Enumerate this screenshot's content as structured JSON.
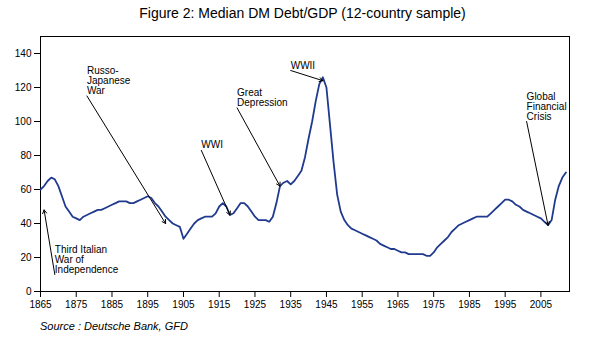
{
  "chart_data": {
    "type": "line",
    "title": "Figure 2: Median DM Debt/GDP (12-country sample)",
    "source": "Source : Deutsche Bank, GFD",
    "color": "#1F3A8F",
    "xlim": [
      1865,
      2013
    ],
    "ylim": [
      0,
      150
    ],
    "xticks": [
      1865,
      1875,
      1885,
      1895,
      1905,
      1915,
      1925,
      1935,
      1945,
      1955,
      1965,
      1975,
      1985,
      1995,
      2005
    ],
    "yticks": [
      0,
      20,
      40,
      60,
      80,
      100,
      120,
      140
    ],
    "grid": false,
    "x": [
      1865,
      1866,
      1867,
      1868,
      1869,
      1870,
      1871,
      1872,
      1873,
      1874,
      1875,
      1876,
      1877,
      1878,
      1879,
      1880,
      1881,
      1882,
      1883,
      1884,
      1885,
      1886,
      1887,
      1888,
      1889,
      1890,
      1891,
      1892,
      1893,
      1894,
      1895,
      1896,
      1897,
      1898,
      1899,
      1900,
      1901,
      1902,
      1903,
      1904,
      1905,
      1906,
      1907,
      1908,
      1909,
      1910,
      1911,
      1912,
      1913,
      1914,
      1915,
      1916,
      1917,
      1918,
      1919,
      1920,
      1921,
      1922,
      1923,
      1924,
      1925,
      1926,
      1927,
      1928,
      1929,
      1930,
      1931,
      1932,
      1933,
      1934,
      1935,
      1936,
      1937,
      1938,
      1939,
      1940,
      1941,
      1942,
      1943,
      1944,
      1945,
      1946,
      1947,
      1948,
      1949,
      1950,
      1951,
      1952,
      1953,
      1954,
      1955,
      1956,
      1957,
      1958,
      1959,
      1960,
      1961,
      1962,
      1963,
      1964,
      1965,
      1966,
      1967,
      1968,
      1969,
      1970,
      1971,
      1972,
      1973,
      1974,
      1975,
      1976,
      1977,
      1978,
      1979,
      1980,
      1981,
      1982,
      1983,
      1984,
      1985,
      1986,
      1987,
      1988,
      1989,
      1990,
      1991,
      1992,
      1993,
      1994,
      1995,
      1996,
      1997,
      1998,
      1999,
      2000,
      2001,
      2002,
      2003,
      2004,
      2005,
      2006,
      2007,
      2008,
      2009,
      2010,
      2011,
      2012
    ],
    "values": [
      60,
      62,
      65,
      67,
      66,
      62,
      56,
      50,
      47,
      44,
      43,
      42,
      44,
      45,
      46,
      47,
      48,
      48,
      49,
      50,
      51,
      52,
      53,
      53,
      53,
      52,
      52,
      53,
      54,
      55,
      56,
      55,
      52,
      50,
      47,
      44,
      42,
      40,
      39,
      38,
      31,
      34,
      37,
      40,
      42,
      43,
      44,
      44,
      44,
      46,
      50,
      52,
      50,
      45,
      46,
      49,
      52,
      52,
      50,
      47,
      44,
      42,
      42,
      42,
      41,
      44,
      52,
      62,
      64,
      65,
      63,
      65,
      68,
      71,
      79,
      90,
      100,
      112,
      122,
      126,
      120,
      98,
      76,
      57,
      47,
      42,
      39,
      37,
      36,
      35,
      34,
      33,
      32,
      31,
      30,
      28,
      27,
      26,
      25,
      25,
      24,
      23,
      23,
      22,
      22,
      22,
      22,
      22,
      21,
      21,
      23,
      26,
      28,
      30,
      32,
      35,
      37,
      39,
      40,
      41,
      42,
      43,
      44,
      44,
      44,
      44,
      46,
      48,
      50,
      52,
      54,
      54,
      53,
      51,
      50,
      48,
      47,
      46,
      45,
      44,
      43,
      41,
      39,
      42,
      54,
      62,
      67,
      70
    ],
    "annotations": [
      {
        "label": "Third Italian\nWar of\nIndependence",
        "xy": [
          1866,
          48
        ],
        "xytext": [
          1869,
          10
        ]
      },
      {
        "label": "Russo-\nJapanese\nWar",
        "xy": [
          1900,
          40
        ],
        "xytext": [
          1878,
          115
        ]
      },
      {
        "label": "WWI",
        "xy": [
          1918,
          45
        ],
        "xytext": [
          1910,
          83
        ]
      },
      {
        "label": "Great\nDepression",
        "xy": [
          1932,
          62
        ],
        "xytext": [
          1920,
          108
        ]
      },
      {
        "label": "WWII",
        "xy": [
          1944,
          124
        ],
        "xytext": [
          1935,
          130
        ]
      },
      {
        "label": "Global\nFinancial\nCrisis",
        "xy": [
          2007,
          39
        ],
        "xytext": [
          2001,
          100
        ]
      }
    ]
  }
}
